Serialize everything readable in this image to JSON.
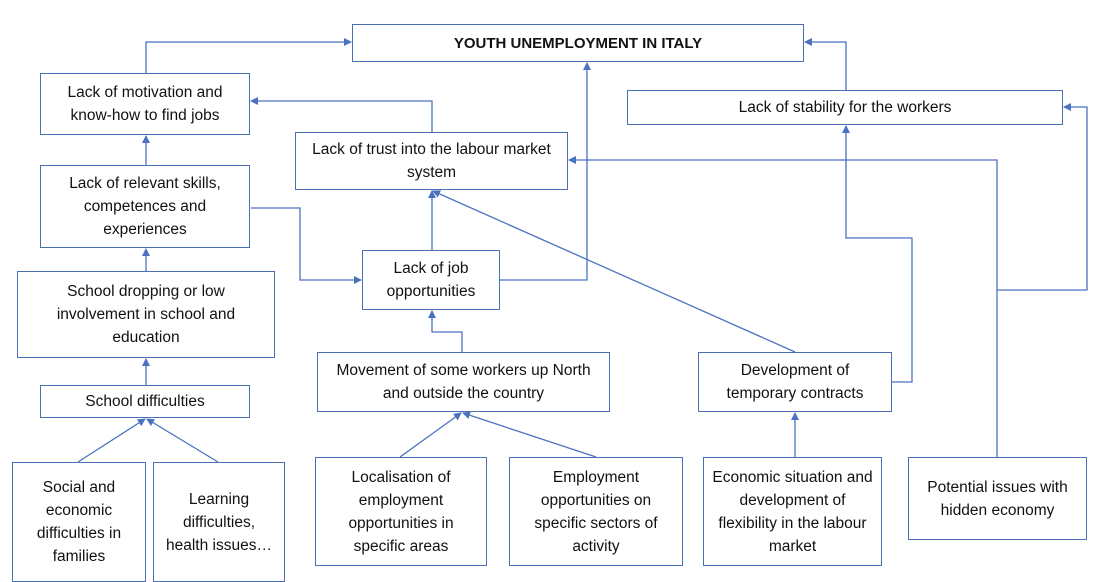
{
  "nodes": [
    {
      "label": "YOUTH UNEMPLOYMENT IN ITALY"
    },
    {
      "label": "Lack of motivation and know-how to find jobs"
    },
    {
      "label": "Lack of stability for the workers"
    },
    {
      "label": "Lack of trust into the labour market system"
    },
    {
      "label": "Lack of relevant skills, competences and experiences"
    },
    {
      "label": "Lack of job opportunities"
    },
    {
      "label": "School dropping or low involvement in school and education"
    },
    {
      "label": "Movement of some workers up North and outside the country"
    },
    {
      "label": "Development of temporary contracts"
    },
    {
      "label": "School difficulties"
    },
    {
      "label": "Social and economic difficulties in families"
    },
    {
      "label": "Learning difficulties, health issues…"
    },
    {
      "label": "Localisation of employment opportunities in specific areas"
    },
    {
      "label": "Employment opportunities on specific sectors of activity"
    },
    {
      "label": "Economic situation and development of flexibility in the labour market"
    },
    {
      "label": "Potential issues with hidden economy"
    }
  ]
}
